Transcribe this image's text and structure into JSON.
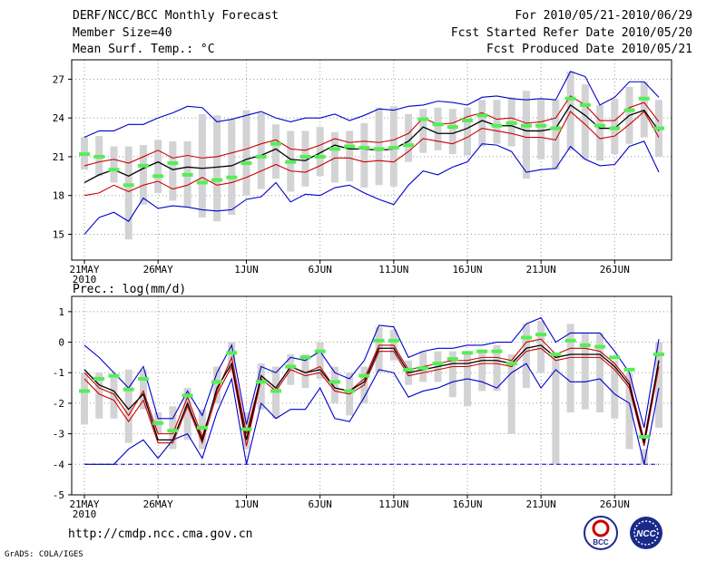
{
  "header": {
    "title": "DERF/NCC/BCC Monthly Forecast",
    "member_size": "Member Size=40",
    "variable": "Mean Surf. Temp.: °C",
    "period": "For 2010/05/21-2010/06/29",
    "refer_date": "Fcst Started Refer Date 2010/05/20",
    "produced_date": "Fcst Produced Date 2010/05/21"
  },
  "footer": {
    "url": "http://cmdp.ncc.cma.gov.cn",
    "credit": "GrADS: COLA/IGES",
    "logo_left": "BCC",
    "logo_right": "NCC"
  },
  "colors": {
    "box": "#d3d3d6",
    "member": "#55ee55",
    "mean": "#000000",
    "spread": "#cc0000",
    "extreme": "#0000cc",
    "grid": "#999999"
  },
  "chart_data": [
    {
      "type": "box-plume",
      "title": "",
      "ylabel": "Mean Surf. Temp.: °C",
      "ylim": [
        13,
        28.5
      ],
      "yticks": [
        15,
        18,
        21,
        24,
        27
      ],
      "xticks": [
        {
          "day": 0,
          "label": "21MAY",
          "sub": "2010"
        },
        {
          "day": 5,
          "label": "26MAY"
        },
        {
          "day": 11,
          "label": "1JUN"
        },
        {
          "day": 16,
          "label": "6JUN"
        },
        {
          "day": 21,
          "label": "11JUN"
        },
        {
          "day": 26,
          "label": "16JUN"
        },
        {
          "day": 31,
          "label": "21JUN"
        },
        {
          "day": 36,
          "label": "26JUN"
        }
      ],
      "x": [
        0,
        1,
        2,
        3,
        4,
        5,
        6,
        7,
        8,
        9,
        10,
        11,
        12,
        13,
        14,
        15,
        16,
        17,
        18,
        19,
        20,
        21,
        22,
        23,
        24,
        25,
        26,
        27,
        28,
        29,
        30,
        31,
        32,
        33,
        34,
        35,
        36,
        37,
        38,
        39
      ],
      "series": [
        {
          "name": "max",
          "values": [
            15.0,
            16.3,
            16.7,
            16.0,
            17.8,
            17.0,
            17.2,
            17.1,
            16.9,
            16.8,
            16.9,
            17.7,
            17.9,
            19.0,
            17.5,
            18.1,
            18.0,
            18.6,
            18.8,
            18.2,
            17.7,
            17.3,
            18.8,
            19.9,
            19.6,
            20.2,
            20.6,
            22.0,
            21.9,
            21.4,
            19.8,
            20.0,
            20.1,
            21.8,
            20.8,
            20.3,
            20.4,
            21.8,
            22.2,
            19.8
          ]
        },
        {
          "name": "p75",
          "values": [
            18.0,
            18.2,
            18.8,
            18.3,
            18.8,
            19.1,
            18.5,
            18.8,
            19.4,
            18.8,
            19.0,
            19.4,
            19.9,
            20.4,
            19.9,
            19.8,
            20.3,
            20.9,
            20.9,
            20.6,
            20.7,
            20.6,
            21.4,
            22.4,
            22.2,
            22.0,
            22.5,
            23.2,
            23.0,
            22.8,
            22.5,
            22.5,
            22.3,
            24.5,
            23.5,
            22.4,
            22.6,
            23.5,
            24.5,
            22.5
          ]
        },
        {
          "name": "mean",
          "values": [
            19.0,
            19.6,
            20.0,
            19.5,
            20.1,
            20.6,
            20.0,
            20.2,
            20.1,
            20.2,
            20.3,
            20.8,
            21.1,
            21.6,
            20.8,
            20.7,
            21.3,
            21.9,
            21.6,
            21.6,
            21.5,
            21.6,
            22.2,
            23.3,
            22.8,
            22.8,
            23.2,
            23.8,
            23.4,
            23.4,
            23.0,
            23.0,
            23.2,
            25.0,
            24.2,
            23.2,
            23.2,
            24.2,
            24.6,
            23.0
          ]
        },
        {
          "name": "p25",
          "values": [
            20.3,
            20.6,
            20.8,
            20.5,
            21.0,
            21.5,
            20.9,
            21.1,
            20.9,
            21.0,
            21.3,
            21.6,
            22.0,
            22.3,
            21.6,
            21.5,
            21.9,
            22.4,
            22.1,
            22.2,
            22.1,
            22.3,
            22.8,
            24.0,
            23.5,
            23.6,
            24.1,
            24.4,
            23.9,
            24.0,
            23.6,
            23.7,
            24.0,
            25.7,
            25.0,
            23.8,
            23.8,
            24.8,
            25.2,
            23.7
          ]
        },
        {
          "name": "min",
          "values": [
            22.5,
            23.0,
            23.0,
            23.5,
            23.5,
            24.0,
            24.4,
            24.9,
            24.8,
            23.7,
            23.9,
            24.2,
            24.5,
            24.0,
            23.7,
            24.0,
            24.0,
            24.3,
            23.8,
            24.2,
            24.7,
            24.6,
            24.9,
            25.0,
            25.3,
            25.2,
            25.0,
            25.6,
            25.7,
            25.5,
            25.4,
            25.5,
            25.4,
            27.6,
            27.2,
            25.0,
            25.6,
            26.8,
            26.8,
            25.6
          ]
        },
        {
          "name": "box_low",
          "values": [
            20.0,
            19.5,
            19.0,
            14.6,
            17.3,
            18.2,
            17.6,
            17.1,
            16.3,
            16.0,
            16.5,
            18.0,
            18.5,
            19.3,
            18.3,
            18.7,
            19.5,
            19.0,
            19.1,
            18.6,
            18.8,
            18.7,
            20.6,
            21.3,
            21.5,
            21.2,
            21.1,
            21.8,
            22.0,
            21.8,
            19.3,
            20.8,
            20.0,
            21.5,
            20.8,
            20.7,
            21.2,
            22.0,
            22.5,
            21.0
          ]
        },
        {
          "name": "box_high",
          "values": [
            22.5,
            22.6,
            21.8,
            21.8,
            21.9,
            22.3,
            22.2,
            22.2,
            24.3,
            24.2,
            23.9,
            24.6,
            24.4,
            23.5,
            23.0,
            23.0,
            23.3,
            22.9,
            23.0,
            23.6,
            24.8,
            24.9,
            24.3,
            24.7,
            24.8,
            24.7,
            24.8,
            25.4,
            25.4,
            25.6,
            26.1,
            25.5,
            25.4,
            27.6,
            26.6,
            25.0,
            25.5,
            26.4,
            26.8,
            25.4
          ]
        },
        {
          "name": "control",
          "values": [
            21.2,
            21.0,
            20.0,
            18.8,
            20.3,
            19.5,
            20.5,
            19.6,
            19.0,
            19.2,
            19.4,
            20.5,
            21.0,
            22.0,
            20.6,
            21.0,
            21.0,
            21.6,
            21.8,
            21.7,
            21.6,
            21.7,
            21.9,
            23.9,
            23.5,
            23.3,
            23.8,
            24.2,
            23.4,
            23.6,
            23.4,
            23.4,
            23.2,
            25.5,
            25.0,
            23.4,
            23.2,
            24.6,
            25.5,
            23.2
          ]
        }
      ]
    },
    {
      "type": "box-plume",
      "title": "",
      "ylabel": "Prec.: log(mm/d)",
      "ylim": [
        -5,
        1.5
      ],
      "yticks": [
        -5,
        -4,
        -3,
        -2,
        -1,
        0,
        1
      ],
      "xticks": [
        {
          "day": 0,
          "label": "21MAY",
          "sub": "2010"
        },
        {
          "day": 5,
          "label": "26MAY"
        },
        {
          "day": 11,
          "label": "1JUN"
        },
        {
          "day": 16,
          "label": "6JUN"
        },
        {
          "day": 21,
          "label": "11JUN"
        },
        {
          "day": 26,
          "label": "16JUN"
        },
        {
          "day": 31,
          "label": "21JUN"
        },
        {
          "day": 36,
          "label": "26JUN"
        }
      ],
      "x": [
        0,
        1,
        2,
        3,
        4,
        5,
        6,
        7,
        8,
        9,
        10,
        11,
        12,
        13,
        14,
        15,
        16,
        17,
        18,
        19,
        20,
        21,
        22,
        23,
        24,
        25,
        26,
        27,
        28,
        29,
        30,
        31,
        32,
        33,
        34,
        35,
        36,
        37,
        38,
        39
      ],
      "series": [
        {
          "name": "max",
          "values": [
            -0.1,
            -0.5,
            -1.0,
            -1.5,
            -0.8,
            -2.5,
            -2.5,
            -1.6,
            -2.4,
            -1.0,
            -0.1,
            -2.7,
            -0.8,
            -1.0,
            -0.5,
            -0.6,
            -0.3,
            -1.0,
            -1.2,
            -0.6,
            0.55,
            0.5,
            -0.5,
            -0.3,
            -0.2,
            -0.2,
            -0.1,
            -0.1,
            0.0,
            0.0,
            0.6,
            0.8,
            0.0,
            0.3,
            0.3,
            0.3,
            -0.3,
            -1.0,
            -2.8,
            0.1
          ]
        },
        {
          "name": "p75",
          "values": [
            -1.0,
            -1.5,
            -1.7,
            -2.4,
            -1.6,
            -3.0,
            -3.0,
            -1.8,
            -3.1,
            -1.6,
            -0.5,
            -3.0,
            -1.1,
            -1.5,
            -0.8,
            -1.0,
            -0.8,
            -1.5,
            -1.6,
            -1.2,
            -0.1,
            -0.1,
            -0.9,
            -0.8,
            -0.7,
            -0.6,
            -0.6,
            -0.5,
            -0.5,
            -0.6,
            0.0,
            0.1,
            -0.4,
            -0.2,
            -0.2,
            -0.3,
            -0.7,
            -1.3,
            -3.2,
            -0.6
          ]
        },
        {
          "name": "mean",
          "values": [
            -0.9,
            -1.4,
            -1.6,
            -2.2,
            -1.7,
            -3.2,
            -3.2,
            -2.0,
            -3.2,
            -1.5,
            -0.7,
            -3.2,
            -1.1,
            -1.5,
            -0.8,
            -1.0,
            -0.9,
            -1.5,
            -1.6,
            -1.3,
            -0.2,
            -0.2,
            -1.0,
            -0.9,
            -0.8,
            -0.7,
            -0.7,
            -0.6,
            -0.6,
            -0.7,
            -0.2,
            -0.1,
            -0.5,
            -0.4,
            -0.4,
            -0.4,
            -0.8,
            -1.4,
            -3.3,
            -0.6
          ]
        },
        {
          "name": "p25",
          "values": [
            -1.2,
            -1.7,
            -1.9,
            -2.6,
            -1.9,
            -3.3,
            -3.3,
            -2.1,
            -3.3,
            -1.7,
            -0.8,
            -3.4,
            -1.2,
            -1.6,
            -0.9,
            -1.1,
            -1.0,
            -1.6,
            -1.7,
            -1.4,
            -0.3,
            -0.3,
            -1.1,
            -1.0,
            -0.9,
            -0.8,
            -0.8,
            -0.7,
            -0.7,
            -0.8,
            -0.3,
            -0.2,
            -0.6,
            -0.5,
            -0.5,
            -0.5,
            -0.9,
            -1.5,
            -3.4,
            -0.8
          ]
        },
        {
          "name": "min",
          "values": [
            -4.0,
            -4.0,
            -4.0,
            -3.5,
            -3.2,
            -3.8,
            -3.2,
            -3.0,
            -3.8,
            -2.3,
            -1.2,
            -4.0,
            -2.0,
            -2.5,
            -2.2,
            -2.2,
            -1.5,
            -2.5,
            -2.6,
            -1.8,
            -0.9,
            -1.0,
            -1.8,
            -1.6,
            -1.5,
            -1.3,
            -1.2,
            -1.3,
            -1.5,
            -1.0,
            -0.7,
            -1.5,
            -0.9,
            -1.3,
            -1.3,
            -1.2,
            -1.7,
            -2.0,
            -4.0,
            -1.5
          ]
        },
        {
          "name": "floor",
          "values": [
            -4.0,
            -4.0,
            -4.0,
            -4.0,
            -4.0,
            -4.0,
            -4.0,
            -4.0,
            -4.0,
            -4.0,
            -4.0,
            -4.0,
            -4.0,
            -4.0,
            -4.0,
            -4.0,
            -4.0,
            -4.0,
            -4.0,
            -4.0,
            -4.0,
            -4.0,
            -4.0,
            -4.0,
            -4.0,
            -4.0,
            -4.0,
            -4.0,
            -4.0,
            -4.0,
            -4.0,
            -4.0,
            -4.0,
            -4.0,
            -4.0,
            -4.0,
            -4.0,
            -4.0,
            -4.0,
            -4.0
          ]
        },
        {
          "name": "box_low",
          "values": [
            -2.7,
            -2.5,
            -2.5,
            -3.3,
            -2.2,
            -3.0,
            -3.5,
            -3.2,
            -3.5,
            -2.0,
            -1.0,
            -3.5,
            -2.2,
            -2.5,
            -1.4,
            -1.5,
            -1.2,
            -2.0,
            -2.4,
            -2.0,
            -1.0,
            -0.6,
            -1.4,
            -1.3,
            -1.3,
            -1.8,
            -2.1,
            -1.6,
            -1.6,
            -3.0,
            -1.5,
            -1.0,
            -4.0,
            -2.3,
            -2.2,
            -2.3,
            -2.5,
            -3.5,
            -4.0,
            -2.8
          ]
        },
        {
          "name": "box_high",
          "values": [
            -1.0,
            -1.0,
            -1.1,
            -0.9,
            -0.9,
            -2.3,
            -2.1,
            -1.5,
            -2.2,
            -0.8,
            0.0,
            -2.3,
            -0.7,
            -0.8,
            -0.4,
            -0.4,
            0.0,
            -0.8,
            -1.0,
            -0.8,
            0.5,
            0.4,
            -0.6,
            -0.3,
            -0.3,
            -0.3,
            -0.3,
            -0.3,
            -0.1,
            -0.4,
            0.6,
            0.7,
            -0.4,
            0.6,
            0.3,
            0.3,
            -0.6,
            -1.0,
            -3.5,
            0.0
          ]
        },
        {
          "name": "control",
          "values": [
            -1.6,
            -1.2,
            -1.1,
            -1.55,
            -1.2,
            -2.65,
            -2.9,
            -1.75,
            -2.8,
            -1.3,
            -0.35,
            -2.85,
            -1.3,
            -1.6,
            -0.8,
            -0.5,
            -0.3,
            -1.3,
            -1.6,
            -1.1,
            0.05,
            0.05,
            -0.9,
            -0.85,
            -0.7,
            -0.55,
            -0.35,
            -0.3,
            -0.3,
            -0.7,
            0.15,
            0.25,
            -0.4,
            0.05,
            -0.1,
            -0.15,
            -0.5,
            -0.9,
            -3.1,
            -0.4
          ]
        }
      ]
    }
  ]
}
